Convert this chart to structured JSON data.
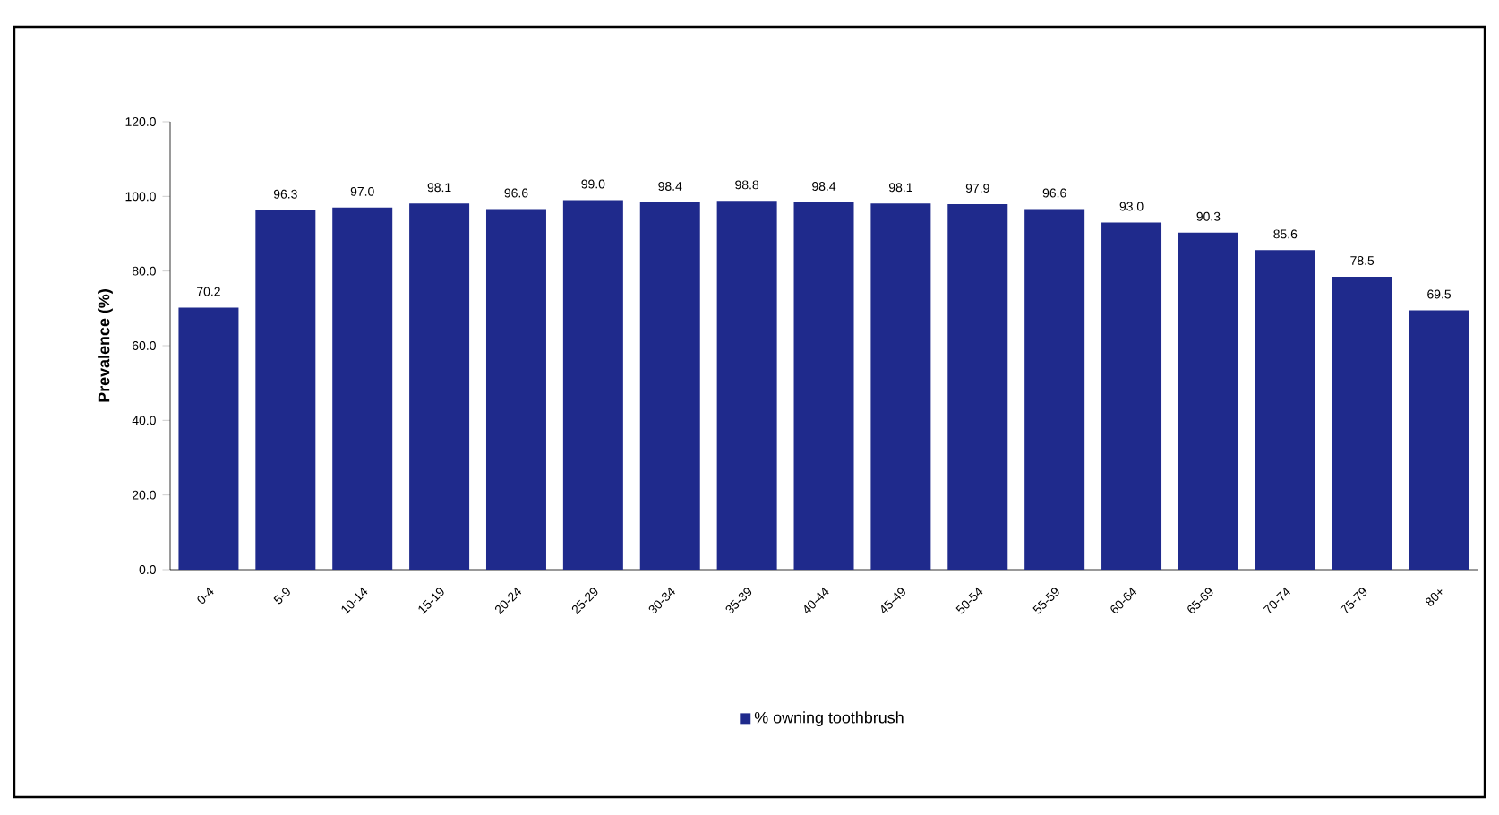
{
  "chart_data": {
    "type": "bar",
    "ylabel": "Prevalence (%)",
    "categories": [
      "0-4",
      "5-9",
      "10-14",
      "15-19",
      "20-24",
      "25-29",
      "30-34",
      "35-39",
      "40-44",
      "45-49",
      "50-54",
      "55-59",
      "60-64",
      "65-69",
      "70-74",
      "75-79",
      "80+"
    ],
    "series": [
      {
        "name": "% owning toothbrush",
        "color": "#1f2a8c",
        "values": [
          70.2,
          96.3,
          97.0,
          98.1,
          96.6,
          99.0,
          98.4,
          98.8,
          98.4,
          98.1,
          97.9,
          96.6,
          93.0,
          90.3,
          85.6,
          78.5,
          69.5
        ]
      }
    ],
    "value_labels": [
      "70.2",
      "96.3",
      "97.0",
      "98.1",
      "96.6",
      "99.0",
      "98.4",
      "98.8",
      "98.4",
      "98.1",
      "97.9",
      "96.6",
      "93.0",
      "90.3",
      "85.6",
      "78.5",
      "69.5"
    ],
    "ylim": [
      0,
      120
    ],
    "yticks": [
      {
        "value": 0,
        "label": "0.0"
      },
      {
        "value": 20,
        "label": "20.0"
      },
      {
        "value": 40,
        "label": "40.0"
      },
      {
        "value": 60,
        "label": "60.0"
      },
      {
        "value": 80,
        "label": "80.0"
      },
      {
        "value": 100,
        "label": "100.0"
      },
      {
        "value": 120,
        "label": "120.0"
      }
    ],
    "legend": "bottom",
    "grid": false
  }
}
